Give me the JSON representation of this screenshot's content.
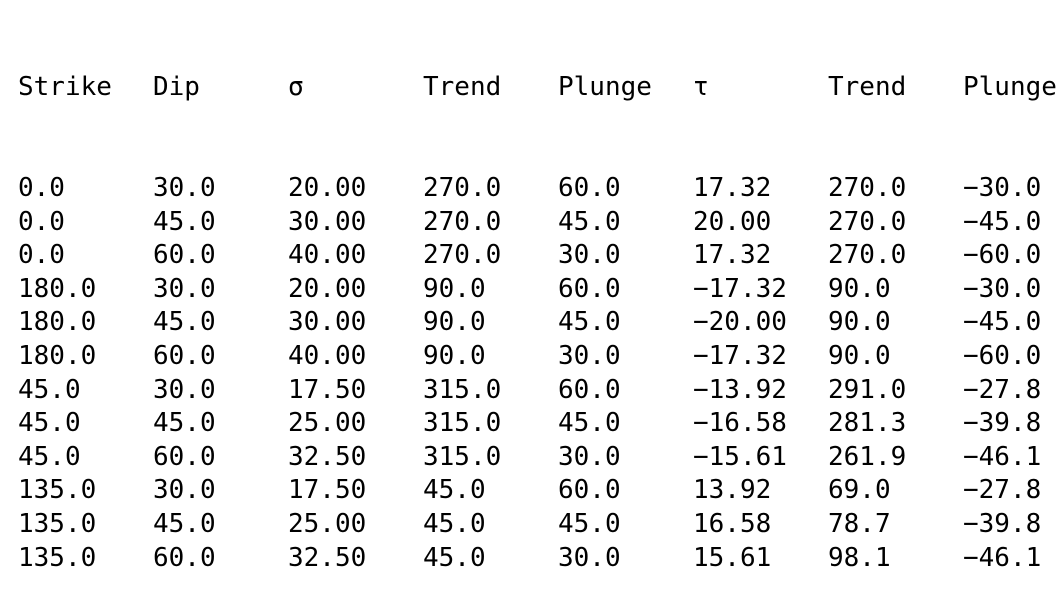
{
  "table": {
    "headers": [
      "Strike",
      "Dip",
      "σ",
      "Trend",
      "Plunge",
      "τ",
      "Trend",
      "Plunge"
    ],
    "rows": [
      [
        "0.0",
        "30.0",
        "20.00",
        "270.0",
        "60.0",
        "17.32",
        "270.0",
        "−30.0"
      ],
      [
        "0.0",
        "45.0",
        "30.00",
        "270.0",
        "45.0",
        "20.00",
        "270.0",
        "−45.0"
      ],
      [
        "0.0",
        "60.0",
        "40.00",
        "270.0",
        "30.0",
        "17.32",
        "270.0",
        "−60.0"
      ],
      [
        "180.0",
        "30.0",
        "20.00",
        "90.0",
        "60.0",
        "−17.32",
        "90.0",
        "−30.0"
      ],
      [
        "180.0",
        "45.0",
        "30.00",
        "90.0",
        "45.0",
        "−20.00",
        "90.0",
        "−45.0"
      ],
      [
        "180.0",
        "60.0",
        "40.00",
        "90.0",
        "30.0",
        "−17.32",
        "90.0",
        "−60.0"
      ],
      [
        "45.0",
        "30.0",
        "17.50",
        "315.0",
        "60.0",
        "−13.92",
        "291.0",
        "−27.8"
      ],
      [
        "45.0",
        "45.0",
        "25.00",
        "315.0",
        "45.0",
        "−16.58",
        "281.3",
        "−39.8"
      ],
      [
        "45.0",
        "60.0",
        "32.50",
        "315.0",
        "30.0",
        "−15.61",
        "261.9",
        "−46.1"
      ],
      [
        "135.0",
        "30.0",
        "17.50",
        "45.0",
        "60.0",
        "13.92",
        "69.0",
        "−27.8"
      ],
      [
        "135.0",
        "45.0",
        "25.00",
        "45.0",
        "45.0",
        "16.58",
        "78.7",
        "−39.8"
      ],
      [
        "135.0",
        "60.0",
        "32.50",
        "45.0",
        "30.0",
        "15.61",
        "98.1",
        "−46.1"
      ]
    ]
  }
}
